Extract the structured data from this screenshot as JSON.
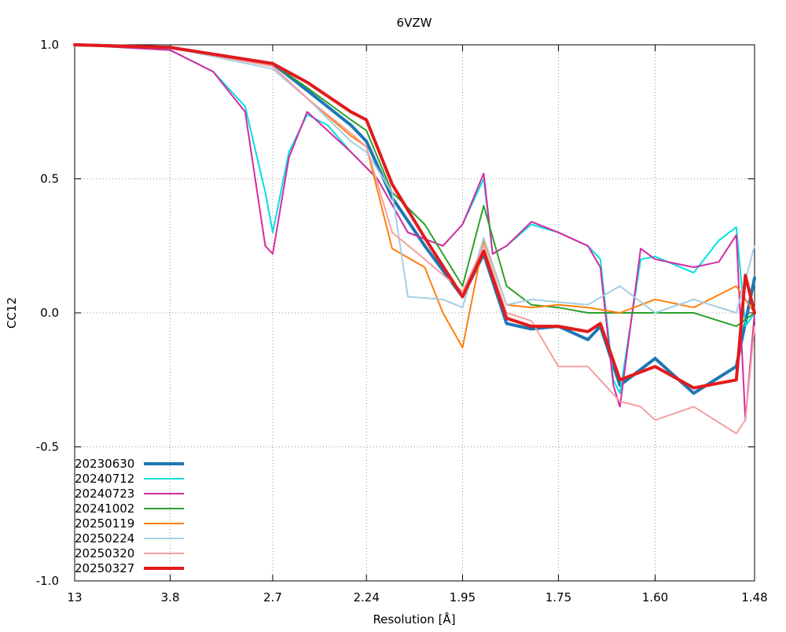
{
  "chart_data": {
    "type": "line",
    "title": "6VZW",
    "xlabel": "Resolution [Å]",
    "ylabel": "CC12",
    "ylim": [
      -1.0,
      1.0
    ],
    "x_scale": "1/d^2",
    "xlim_resolution": [
      13,
      1.48
    ],
    "x_ticks": [
      "13",
      "3.8",
      "2.7",
      "2.24",
      "1.95",
      "1.75",
      "1.60",
      "1.48"
    ],
    "y_ticks": [
      "1.0",
      "0.5",
      "0.0",
      "-0.5",
      "-1.0"
    ],
    "grid": true,
    "legend": "bottom-left",
    "series": [
      {
        "name": "20230630",
        "color": "#1f77b4",
        "width": 4,
        "x": [
          13,
          3.8,
          2.7,
          2.5,
          2.3,
          2.24,
          2.15,
          2.05,
          1.95,
          1.9,
          1.85,
          1.8,
          1.75,
          1.7,
          1.68,
          1.65,
          1.6,
          1.55,
          1.5,
          1.48
        ],
        "y": [
          1.0,
          0.99,
          0.93,
          0.83,
          0.7,
          0.64,
          0.43,
          0.25,
          0.06,
          0.22,
          -0.04,
          -0.06,
          -0.05,
          -0.1,
          -0.05,
          -0.27,
          -0.17,
          -0.3,
          -0.2,
          0.13
        ]
      },
      {
        "name": "20240712",
        "color": "#00e0e0",
        "width": 2,
        "x": [
          13,
          3.8,
          3.2,
          2.9,
          2.75,
          2.7,
          2.6,
          2.5,
          2.4,
          2.3,
          2.2,
          2.1,
          2.0,
          1.95,
          1.9,
          1.88,
          1.85,
          1.8,
          1.75,
          1.7,
          1.68,
          1.66,
          1.65,
          1.62,
          1.6,
          1.55,
          1.52,
          1.5,
          1.49,
          1.48
        ],
        "y": [
          1.0,
          0.98,
          0.9,
          0.77,
          0.45,
          0.3,
          0.6,
          0.74,
          0.7,
          0.6,
          0.5,
          0.3,
          0.25,
          0.33,
          0.5,
          0.22,
          0.25,
          0.33,
          0.3,
          0.25,
          0.2,
          -0.25,
          -0.3,
          0.2,
          0.21,
          0.15,
          0.27,
          0.32,
          -0.05,
          0.0
        ]
      },
      {
        "name": "20240723",
        "color": "#d62aa0",
        "width": 2,
        "x": [
          13,
          3.8,
          3.2,
          2.9,
          2.75,
          2.7,
          2.6,
          2.5,
          2.4,
          2.3,
          2.2,
          2.1,
          2.0,
          1.95,
          1.9,
          1.88,
          1.85,
          1.8,
          1.75,
          1.7,
          1.68,
          1.66,
          1.65,
          1.62,
          1.6,
          1.55,
          1.52,
          1.5,
          1.49,
          1.48
        ],
        "y": [
          1.0,
          0.98,
          0.9,
          0.75,
          0.25,
          0.22,
          0.58,
          0.75,
          0.68,
          0.6,
          0.5,
          0.3,
          0.25,
          0.33,
          0.52,
          0.22,
          0.25,
          0.34,
          0.3,
          0.25,
          0.17,
          -0.27,
          -0.35,
          0.24,
          0.2,
          0.17,
          0.19,
          0.29,
          -0.4,
          0.0
        ]
      },
      {
        "name": "20241002",
        "color": "#2ca02c",
        "width": 2,
        "x": [
          13,
          3.8,
          2.7,
          2.5,
          2.3,
          2.24,
          2.15,
          2.05,
          1.95,
          1.9,
          1.85,
          1.8,
          1.75,
          1.7,
          1.65,
          1.6,
          1.55,
          1.5,
          1.48
        ],
        "y": [
          1.0,
          0.99,
          0.93,
          0.84,
          0.72,
          0.68,
          0.45,
          0.33,
          0.1,
          0.4,
          0.1,
          0.03,
          0.02,
          0.0,
          0.0,
          0.0,
          0.0,
          -0.05,
          0.0
        ]
      },
      {
        "name": "20250119",
        "color": "#ff7f0e",
        "width": 2,
        "x": [
          13,
          3.8,
          2.7,
          2.5,
          2.3,
          2.24,
          2.15,
          2.05,
          2.0,
          1.95,
          1.9,
          1.85,
          1.8,
          1.75,
          1.7,
          1.65,
          1.6,
          1.55,
          1.5,
          1.48
        ],
        "y": [
          1.0,
          0.99,
          0.92,
          0.8,
          0.66,
          0.62,
          0.24,
          0.17,
          0.0,
          -0.13,
          0.27,
          0.03,
          0.02,
          0.03,
          0.02,
          0.0,
          0.05,
          0.02,
          0.1,
          0.0
        ]
      },
      {
        "name": "20250224",
        "color": "#a6cee3",
        "width": 2,
        "x": [
          13,
          3.8,
          2.7,
          2.5,
          2.3,
          2.24,
          2.15,
          2.1,
          2.0,
          1.95,
          1.9,
          1.85,
          1.8,
          1.75,
          1.7,
          1.65,
          1.6,
          1.55,
          1.5,
          1.48
        ],
        "y": [
          1.0,
          0.99,
          0.91,
          0.8,
          0.64,
          0.6,
          0.45,
          0.06,
          0.05,
          0.02,
          0.28,
          0.03,
          0.05,
          0.04,
          0.03,
          0.1,
          0.0,
          0.05,
          0.0,
          0.25
        ]
      },
      {
        "name": "20250320",
        "color": "#f4a0a0",
        "width": 2,
        "x": [
          13,
          3.8,
          2.7,
          2.5,
          2.3,
          2.24,
          2.15,
          2.05,
          1.95,
          1.9,
          1.85,
          1.8,
          1.75,
          1.7,
          1.65,
          1.62,
          1.6,
          1.55,
          1.5,
          1.49,
          1.48
        ],
        "y": [
          1.0,
          0.99,
          0.92,
          0.8,
          0.67,
          0.62,
          0.3,
          0.2,
          0.08,
          0.25,
          0.0,
          -0.03,
          -0.2,
          -0.2,
          -0.33,
          -0.35,
          -0.4,
          -0.35,
          -0.45,
          -0.4,
          -0.05
        ]
      },
      {
        "name": "20250327",
        "color": "#e31a1c",
        "width": 4,
        "x": [
          13,
          3.8,
          2.7,
          2.5,
          2.3,
          2.24,
          2.15,
          2.05,
          1.95,
          1.9,
          1.85,
          1.8,
          1.75,
          1.7,
          1.68,
          1.65,
          1.6,
          1.55,
          1.5,
          1.49,
          1.48
        ],
        "y": [
          1.0,
          0.99,
          0.93,
          0.86,
          0.75,
          0.72,
          0.48,
          0.28,
          0.06,
          0.23,
          -0.02,
          -0.05,
          -0.05,
          -0.07,
          -0.04,
          -0.25,
          -0.2,
          -0.28,
          -0.25,
          0.14,
          0.0
        ]
      }
    ]
  }
}
